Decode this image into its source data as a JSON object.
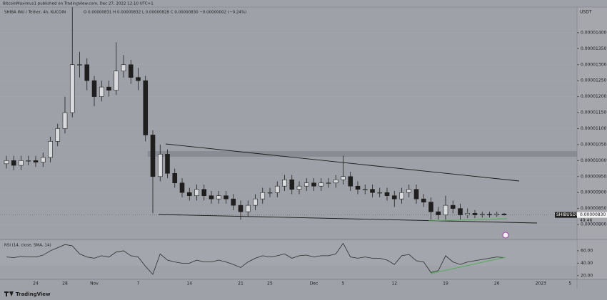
{
  "header": {
    "author_line": "BitcoinMaximus1 published on TradingView.com, Dec 27, 2022 12:10 UTC+1",
    "symbol": "SHIBA INU / Tether, 4h, KUCOIN",
    "ohlc": "O 0.00000831  H 0.00000832  L 0.00000828  C 0.00000830  −0.00000002 (−0.24%)",
    "currency": "USDT",
    "brand": "TradingView"
  },
  "chart_data": [
    {
      "type": "candlestick",
      "categories": [
        null,
        null,
        null,
        null,
        "24",
        null,
        null,
        null,
        "28",
        null,
        null,
        null,
        "Nov",
        null,
        null,
        null,
        null,
        null,
        "7",
        null,
        null,
        null,
        null,
        null,
        null,
        "14",
        null,
        null,
        null,
        null,
        null,
        null,
        "21",
        null,
        null,
        null,
        "25",
        null,
        null,
        null,
        null,
        null,
        "Dec",
        null,
        null,
        null,
        "5",
        null,
        null,
        null,
        null,
        null,
        null,
        "12",
        null,
        null,
        null,
        null,
        null,
        null,
        "19",
        null,
        null,
        null,
        null,
        null,
        null,
        "26",
        null,
        null,
        null,
        null,
        null,
        "2023",
        null,
        null,
        null,
        "5",
        null
      ],
      "open": [
        9.9e-06,
        1e-05,
        9.85e-06,
        1e-05,
        1e-05,
        9.95e-06,
        1.01e-05,
        1.06e-05,
        1.1e-05,
        1.15e-05,
        1.3e-05,
        1.3e-05,
        1.25e-05,
        1.2e-05,
        1.23e-05,
        1.22e-05,
        1.28e-05,
        1.3e-05,
        1.26e-05,
        1.25e-05,
        1.08e-05,
        9.5e-06,
        1.02e-05,
        9.6e-06,
        9.3e-06,
        9e-06,
        8.9e-06,
        9.1e-06,
        8.9e-06,
        8.8e-06,
        8.9e-06,
        8.8e-06,
        8.6e-06,
        8.4e-06,
        8.6e-06,
        8.8e-06,
        9e-06,
        9e-06,
        9.2e-06,
        9.4e-06,
        9.1e-06,
        9.2e-06,
        9.3e-06,
        9.2e-06,
        9.3e-06,
        9.3e-06,
        9.4e-06,
        9.5e-06,
        9.2e-06,
        9.1e-06,
        9.1e-06,
        9e-06,
        9e-06,
        8.9e-06,
        8.8e-06,
        9e-06,
        9.1e-06,
        8.8e-06,
        8.7e-06,
        8.4e-06,
        8.3e-06,
        8.6e-06,
        8.5e-06,
        8.3e-06,
        8.35e-06,
        8.3e-06,
        8.32e-06,
        8.3e-06,
        8.33e-06,
        null,
        null,
        null,
        null,
        null,
        null,
        null,
        null,
        null,
        null
      ],
      "high": [
        1.015e-05,
        1.015e-05,
        1.015e-05,
        1.015e-05,
        1.015e-05,
        1.025e-05,
        1.075e-05,
        1.115e-05,
        1.2e-05,
        1.48e-05,
        1.34e-05,
        1.32e-05,
        1.265e-05,
        1.25e-05,
        1.25e-05,
        1.37e-05,
        1.33e-05,
        1.315e-05,
        1.29e-05,
        1.265e-05,
        1.095e-05,
        1.05e-05,
        1.035e-05,
        9.75e-06,
        9.45e-06,
        9.15e-06,
        9.25e-06,
        9.25e-06,
        9.05e-06,
        9.05e-06,
        9.05e-06,
        8.95e-06,
        8.75e-06,
        8.75e-06,
        8.95e-06,
        9.15e-06,
        9.15e-06,
        9.35e-06,
        9.55e-06,
        9.55e-06,
        9.35e-06,
        9.45e-06,
        9.45e-06,
        9.45e-06,
        9.45e-06,
        9.55e-06,
        1.015e-05,
        9.65e-06,
        9.35e-06,
        9.25e-06,
        9.25e-06,
        9.15e-06,
        9.15e-06,
        9.05e-06,
        9.15e-06,
        9.25e-06,
        9.25e-06,
        8.95e-06,
        8.85e-06,
        8.55e-06,
        8.9e-06,
        8.75e-06,
        8.65e-06,
        8.5e-06,
        8.45e-06,
        8.4e-06,
        8.4e-06,
        8.4e-06,
        8.36e-06,
        null,
        null,
        null,
        null,
        null,
        null,
        null,
        null,
        null,
        null
      ],
      "low": [
        9.75e-06,
        9.7e-06,
        9.7e-06,
        9.85e-06,
        9.8e-06,
        9.8e-06,
        9.95e-06,
        1.045e-05,
        1.085e-05,
        1.135e-05,
        1.26e-05,
        1.22e-05,
        1.17e-05,
        1.185e-05,
        1.2e-05,
        1.205e-05,
        1.26e-05,
        1.24e-05,
        1.22e-05,
        1.06e-05,
        8.35e-06,
        9.35e-06,
        9.45e-06,
        9.15e-06,
        8.85e-06,
        8.75e-06,
        8.75e-06,
        8.75e-06,
        8.65e-06,
        8.65e-06,
        8.65e-06,
        8.45e-06,
        8.15e-06,
        8.25e-06,
        8.45e-06,
        8.65e-06,
        8.85e-06,
        8.85e-06,
        9.05e-06,
        8.95e-06,
        8.95e-06,
        9.05e-06,
        9.05e-06,
        9.05e-06,
        9.15e-06,
        9.15e-06,
        9.25e-06,
        9.05e-06,
        8.95e-06,
        8.95e-06,
        8.85e-06,
        8.85e-06,
        8.75e-06,
        8.55e-06,
        8.65e-06,
        8.85e-06,
        8.65e-06,
        8.55e-06,
        8.15e-06,
        8.15e-06,
        8.15e-06,
        8.35e-06,
        8.15e-06,
        8.2e-06,
        8.2e-06,
        8.22e-06,
        8.22e-06,
        8.24e-06,
        8.28e-06,
        null,
        null,
        null,
        null,
        null,
        null,
        null,
        null,
        null,
        null
      ],
      "close": [
        1e-05,
        9.85e-06,
        1e-05,
        1e-05,
        9.95e-06,
        1.01e-05,
        1.06e-05,
        1.1e-05,
        1.15e-05,
        1.3e-05,
        1.3e-05,
        1.25e-05,
        1.2e-05,
        1.23e-05,
        1.22e-05,
        1.28e-05,
        1.3e-05,
        1.26e-05,
        1.25e-05,
        1.08e-05,
        9.5e-06,
        1.02e-05,
        9.6e-06,
        9.3e-06,
        9e-06,
        8.9e-06,
        9.1e-06,
        8.9e-06,
        8.8e-06,
        8.9e-06,
        8.8e-06,
        8.6e-06,
        8.4e-06,
        8.6e-06,
        8.8e-06,
        9e-06,
        9e-06,
        9.2e-06,
        9.4e-06,
        9.1e-06,
        9.2e-06,
        9.3e-06,
        9.2e-06,
        9.3e-06,
        9.3e-06,
        9.4e-06,
        9.5e-06,
        9.2e-06,
        9.1e-06,
        9.1e-06,
        9e-06,
        9e-06,
        8.9e-06,
        8.8e-06,
        9e-06,
        9.1e-06,
        8.8e-06,
        8.7e-06,
        8.4e-06,
        8.3e-06,
        8.6e-06,
        8.5e-06,
        8.3e-06,
        8.35e-06,
        8.3e-06,
        8.32e-06,
        8.3e-06,
        8.33e-06,
        8.3e-06,
        null,
        null,
        null,
        null,
        null,
        null,
        null,
        null,
        null,
        null
      ],
      "up_color": "#d9dadd",
      "down_color": "#1f1f1f",
      "ylim": [
        7.6e-06,
        1.48e-05
      ],
      "yticks": [
        {
          "value": 1.4e-05,
          "label": "0.00001400"
        },
        {
          "value": 1.35e-05,
          "label": "0.00001350"
        },
        {
          "value": 1.3e-05,
          "label": "0.00001300"
        },
        {
          "value": 1.25e-05,
          "label": "0.00001250"
        },
        {
          "value": 1.2e-05,
          "label": "0.00001200"
        },
        {
          "value": 1.15e-05,
          "label": "0.00001150"
        },
        {
          "value": 1.1e-05,
          "label": "0.00001100"
        },
        {
          "value": 1.05e-05,
          "label": "0.00001050"
        },
        {
          "value": 1e-05,
          "label": "0.00001000"
        },
        {
          "value": 9.5e-06,
          "label": "0.00000950"
        },
        {
          "value": 9e-06,
          "label": "0.00000900"
        },
        {
          "value": 8.5e-06,
          "label": "0.00000850"
        },
        {
          "value": 8e-06,
          "label": "0.00000800"
        }
      ],
      "price_label": {
        "symbol": "SHIBUSDT",
        "value": 8.3e-06,
        "label": "0.00000830",
        "timer": "49:46"
      }
    },
    {
      "type": "line",
      "title": "RSI (14, close, SMA, 14)",
      "color": "#2b2b2b",
      "values": [
        50,
        49,
        51,
        50,
        50,
        53,
        60,
        65,
        70,
        68,
        55,
        50,
        48,
        52,
        50,
        58,
        60,
        52,
        50,
        35,
        22,
        55,
        45,
        42,
        40,
        40,
        45,
        42,
        42,
        45,
        42,
        38,
        33,
        42,
        48,
        52,
        50,
        52,
        55,
        48,
        52,
        53,
        50,
        52,
        52,
        55,
        72,
        50,
        48,
        50,
        48,
        48,
        45,
        38,
        52,
        54,
        44,
        42,
        25,
        28,
        52,
        42,
        38,
        42,
        44,
        46,
        48,
        50,
        49,
        null,
        null,
        null,
        null,
        null,
        null,
        null,
        null,
        null,
        null
      ],
      "ylim": [
        14,
        76
      ],
      "yticks": [
        {
          "value": 60,
          "label": "60.00"
        },
        {
          "value": 40,
          "label": "40.00"
        },
        {
          "value": 20,
          "label": "20.00"
        }
      ]
    }
  ]
}
